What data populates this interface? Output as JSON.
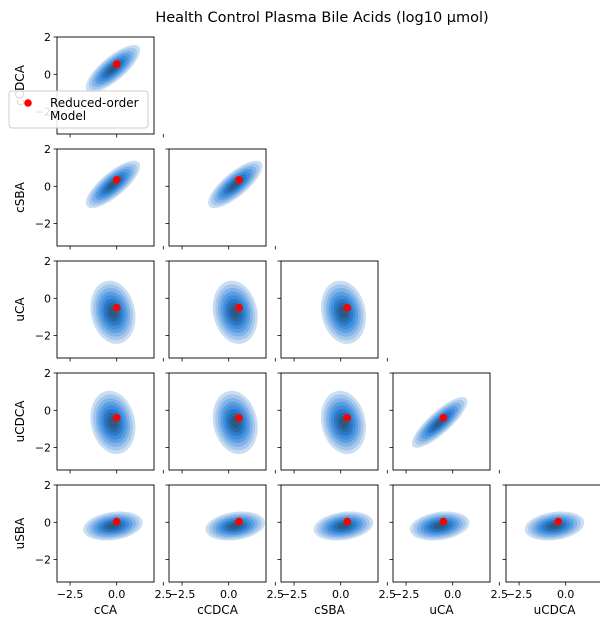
{
  "title": "Health Control Plasma Bile Acids (log10 μmol)",
  "chart_data": {
    "type": "scatter",
    "subtype": "pairwise-kde-corner-plot",
    "title": "Health Control Plasma Bile Acids (log10 μmol)",
    "variables": [
      "cCA",
      "cCDCA",
      "cSBA",
      "uCA",
      "uCDCA",
      "uSBA"
    ],
    "x_ticks": [
      -2.5,
      0.0,
      2.5
    ],
    "x_tick_labels": [
      "−2.5",
      "0.0",
      "2.5"
    ],
    "y_ticks": [
      -2,
      0,
      2
    ],
    "y_tick_labels": [
      "−2",
      "0",
      "2"
    ],
    "axis_range": [
      -3.2,
      2.0
    ],
    "legend": {
      "position": "upper-left",
      "label": "Reduced-order Model",
      "label_lines": [
        "Reduced-order",
        "Model"
      ],
      "color": "#ff0000"
    },
    "kde_color": "#1f77b4",
    "model_point": {
      "cCA": 0.0,
      "cCDCA": 0.55,
      "cSBA": 0.35,
      "uCA": -0.5,
      "uCDCA": -0.4,
      "uSBA": 0.05
    },
    "panels": [
      {
        "row": "cCDCA",
        "col": "cCA",
        "point": [
          0.0,
          0.55
        ]
      },
      {
        "row": "cSBA",
        "col": "cCA",
        "point": [
          0.0,
          0.35
        ]
      },
      {
        "row": "cSBA",
        "col": "cCDCA",
        "point": [
          0.55,
          0.35
        ]
      },
      {
        "row": "uCA",
        "col": "cCA",
        "point": [
          0.0,
          -0.5
        ]
      },
      {
        "row": "uCA",
        "col": "cCDCA",
        "point": [
          0.55,
          -0.5
        ]
      },
      {
        "row": "uCA",
        "col": "cSBA",
        "point": [
          0.35,
          -0.5
        ]
      },
      {
        "row": "uCDCA",
        "col": "cCA",
        "point": [
          0.0,
          -0.4
        ]
      },
      {
        "row": "uCDCA",
        "col": "cCDCA",
        "point": [
          0.55,
          -0.4
        ]
      },
      {
        "row": "uCDCA",
        "col": "cSBA",
        "point": [
          0.35,
          -0.4
        ]
      },
      {
        "row": "uCDCA",
        "col": "uCA",
        "point": [
          -0.5,
          -0.4
        ]
      },
      {
        "row": "uSBA",
        "col": "cCA",
        "point": [
          0.0,
          0.05
        ]
      },
      {
        "row": "uSBA",
        "col": "cCDCA",
        "point": [
          0.55,
          0.05
        ]
      },
      {
        "row": "uSBA",
        "col": "cSBA",
        "point": [
          0.35,
          0.05
        ]
      },
      {
        "row": "uSBA",
        "col": "uCA",
        "point": [
          -0.5,
          0.05
        ]
      },
      {
        "row": "uSBA",
        "col": "uCDCA",
        "point": [
          -0.4,
          0.05
        ]
      }
    ]
  }
}
